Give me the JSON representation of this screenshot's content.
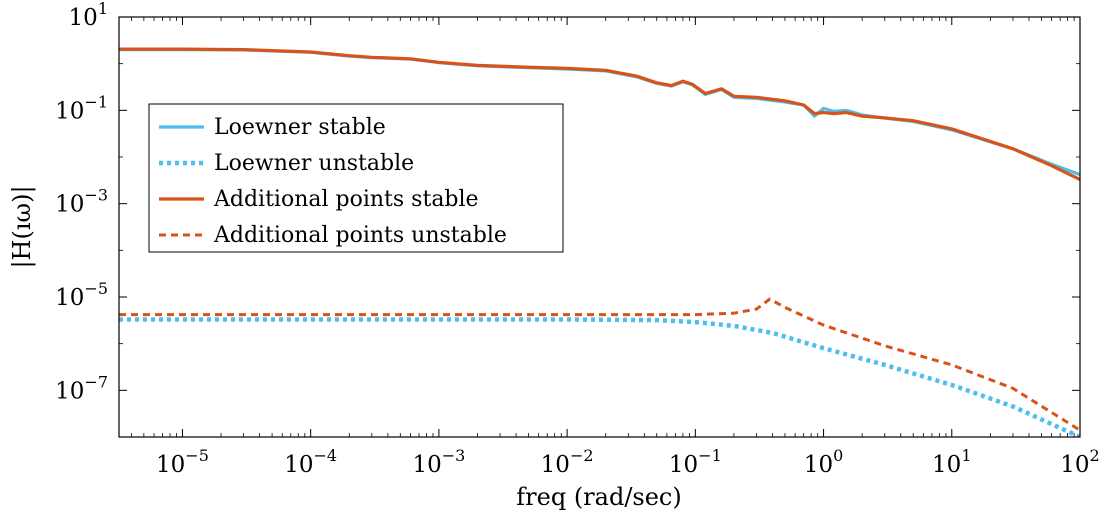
{
  "chart_data": {
    "type": "line",
    "title": "",
    "xlabel": "freq (rad/sec)",
    "ylabel": "|H(ıω)|",
    "x_scale": "log",
    "y_scale": "log",
    "xlim": [
      3.2e-06,
      100
    ],
    "ylim": [
      1e-08,
      10
    ],
    "x_ticks": [
      {
        "base": "10",
        "exp": "−5",
        "value": 1e-05
      },
      {
        "base": "10",
        "exp": "−4",
        "value": 0.0001
      },
      {
        "base": "10",
        "exp": "−3",
        "value": 0.001
      },
      {
        "base": "10",
        "exp": "−2",
        "value": 0.01
      },
      {
        "base": "10",
        "exp": "−1",
        "value": 0.1
      },
      {
        "base": "10",
        "exp": "0",
        "value": 1
      },
      {
        "base": "10",
        "exp": "1",
        "value": 10
      },
      {
        "base": "10",
        "exp": "2",
        "value": 100
      }
    ],
    "y_ticks": [
      {
        "base": "10",
        "exp": "1",
        "value": 10
      },
      {
        "base": "10",
        "exp": "−1",
        "value": 0.1
      },
      {
        "base": "10",
        "exp": "−3",
        "value": 0.001
      },
      {
        "base": "10",
        "exp": "−5",
        "value": 1e-05
      },
      {
        "base": "10",
        "exp": "−7",
        "value": 1e-07
      }
    ],
    "grid": false,
    "legend_position": "left",
    "series": [
      {
        "name": "Loewner stable",
        "color": "#4DBEEE",
        "dash": "solid",
        "points": [
          [
            3.2e-06,
            2.0
          ],
          [
            1e-05,
            2.0
          ],
          [
            3e-05,
            1.97
          ],
          [
            0.0001,
            1.75
          ],
          [
            0.0002,
            1.45
          ],
          [
            0.0003,
            1.35
          ],
          [
            0.0006,
            1.25
          ],
          [
            0.001,
            1.05
          ],
          [
            0.002,
            0.9
          ],
          [
            0.005,
            0.82
          ],
          [
            0.01,
            0.77
          ],
          [
            0.02,
            0.7
          ],
          [
            0.035,
            0.52
          ],
          [
            0.05,
            0.38
          ],
          [
            0.065,
            0.33
          ],
          [
            0.08,
            0.41
          ],
          [
            0.095,
            0.35
          ],
          [
            0.12,
            0.22
          ],
          [
            0.16,
            0.28
          ],
          [
            0.2,
            0.19
          ],
          [
            0.3,
            0.18
          ],
          [
            0.5,
            0.15
          ],
          [
            0.7,
            0.13
          ],
          [
            0.85,
            0.075
          ],
          [
            1.0,
            0.11
          ],
          [
            1.2,
            0.095
          ],
          [
            1.5,
            0.1
          ],
          [
            2.0,
            0.08
          ],
          [
            3.0,
            0.068
          ],
          [
            5.0,
            0.058
          ],
          [
            10,
            0.038
          ],
          [
            30,
            0.015
          ],
          [
            60,
            0.007
          ],
          [
            100,
            0.0042
          ]
        ]
      },
      {
        "name": "Loewner unstable",
        "color": "#4DBEEE",
        "dash": "dotted",
        "points": [
          [
            3.2e-06,
            3.3e-06
          ],
          [
            0.001,
            3.3e-06
          ],
          [
            0.01,
            3.3e-06
          ],
          [
            0.05,
            3.2e-06
          ],
          [
            0.1,
            2.9e-06
          ],
          [
            0.2,
            2.4e-06
          ],
          [
            0.4,
            1.7e-06
          ],
          [
            1,
            8e-07
          ],
          [
            3,
            3.5e-07
          ],
          [
            10,
            1.3e-07
          ],
          [
            30,
            4.5e-08
          ],
          [
            100,
            1e-08
          ]
        ]
      },
      {
        "name": "Additional points stable",
        "color": "#D95319",
        "dash": "solid",
        "points": [
          [
            3.2e-06,
            2.05
          ],
          [
            1e-05,
            2.05
          ],
          [
            3e-05,
            2.0
          ],
          [
            0.0001,
            1.78
          ],
          [
            0.0002,
            1.48
          ],
          [
            0.0003,
            1.37
          ],
          [
            0.0006,
            1.27
          ],
          [
            0.001,
            1.07
          ],
          [
            0.002,
            0.92
          ],
          [
            0.005,
            0.84
          ],
          [
            0.01,
            0.79
          ],
          [
            0.02,
            0.72
          ],
          [
            0.035,
            0.54
          ],
          [
            0.05,
            0.39
          ],
          [
            0.065,
            0.34
          ],
          [
            0.08,
            0.42
          ],
          [
            0.095,
            0.36
          ],
          [
            0.12,
            0.23
          ],
          [
            0.16,
            0.29
          ],
          [
            0.2,
            0.2
          ],
          [
            0.3,
            0.19
          ],
          [
            0.5,
            0.16
          ],
          [
            0.7,
            0.13
          ],
          [
            0.85,
            0.085
          ],
          [
            1.0,
            0.09
          ],
          [
            1.2,
            0.085
          ],
          [
            1.5,
            0.09
          ],
          [
            2.0,
            0.075
          ],
          [
            3.0,
            0.069
          ],
          [
            5.0,
            0.06
          ],
          [
            10,
            0.04
          ],
          [
            30,
            0.015
          ],
          [
            60,
            0.0065
          ],
          [
            100,
            0.0033
          ]
        ]
      },
      {
        "name": "Additional points unstable",
        "color": "#D95319",
        "dash": "dashed",
        "points": [
          [
            3.2e-06,
            4.2e-06
          ],
          [
            0.001,
            4.2e-06
          ],
          [
            0.01,
            4.2e-06
          ],
          [
            0.05,
            4.2e-06
          ],
          [
            0.1,
            4.2e-06
          ],
          [
            0.2,
            4.5e-06
          ],
          [
            0.3,
            5.5e-06
          ],
          [
            0.38,
            9e-06
          ],
          [
            0.5,
            6e-06
          ],
          [
            1,
            2.5e-06
          ],
          [
            3,
            9e-07
          ],
          [
            10,
            3.5e-07
          ],
          [
            30,
            1.1e-07
          ],
          [
            100,
            1.4e-08
          ]
        ]
      }
    ]
  }
}
